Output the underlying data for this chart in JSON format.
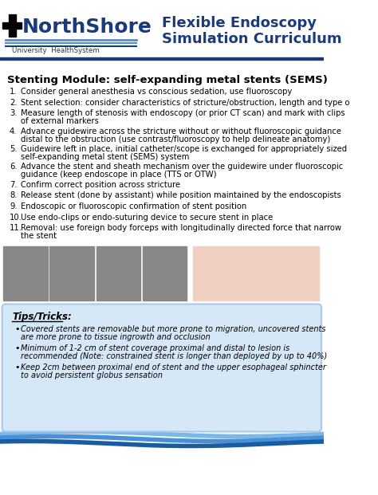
{
  "title_left": "NorthShore",
  "title_sub": "University HealthSystem",
  "title_right_line1": "Flexible Endoscopy",
  "title_right_line2": "Simulation Curriculum",
  "section_title": "Stenting Module: self-expanding metal stents (SEMS)",
  "steps": [
    "Consider general anesthesia vs conscious sedation, use fluoroscopy",
    "Stent selection: consider characteristics of stricture/obstruction, length and type o",
    "Measure length of stenosis with endoscopy (or prior CT scan) and mark with clips\nof external markers",
    "Advance guidewire across the stricture without or without fluoroscopic guidance\ndistal to the obstruction (use contrast/fluoroscopy to help delineate anatomy)",
    "Guidewire left in place, initial catheter/scope is exchanged for appropriately sized\nself-expanding metal stent (SEMS) system",
    "Advance the stent and sheath mechanism over the guidewire under fluoroscopic\nguidance (keep endoscope in place (TTS or OTW)",
    "Confirm correct position across stricture",
    "Release stent (done by assistant) while position maintained by the endoscopists",
    "Endoscopic or fluoroscopic confirmation of stent position",
    "Use endo-clips or endo-suturing device to secure stent in place",
    "Removal: use foreign body forceps with longitudinally directed force that narrow\nthe stent"
  ],
  "tips_title": "Tips/Tricks:",
  "tips": [
    "Covered stents are removable but more prone to migration, uncovered stents\nare more prone to tissue ingrowth and occlusion",
    "Minimum of 1-2 cm of stent coverage proximal and distal to lesion is\nrecommended (Note: constrained stent is longer than deployed by up to 40%)",
    "Keep 2cm between proximal end of stent and the upper esophageal sphincter\nto avoid persistent globus sensation"
  ],
  "header_bg": "#ffffff",
  "header_blue": "#1a3a7a",
  "logo_blue": "#1a3a7a",
  "logo_wave_blue": "#4a90d9",
  "section_bg": "#ffffff",
  "tips_bg": "#d6e8f7",
  "tips_border": "#aac8e8",
  "footer_blue1": "#1a5ca0",
  "footer_blue2": "#4a90d9",
  "footer_blue3": "#7ab8e8",
  "divider_color": "#1a3a7a"
}
